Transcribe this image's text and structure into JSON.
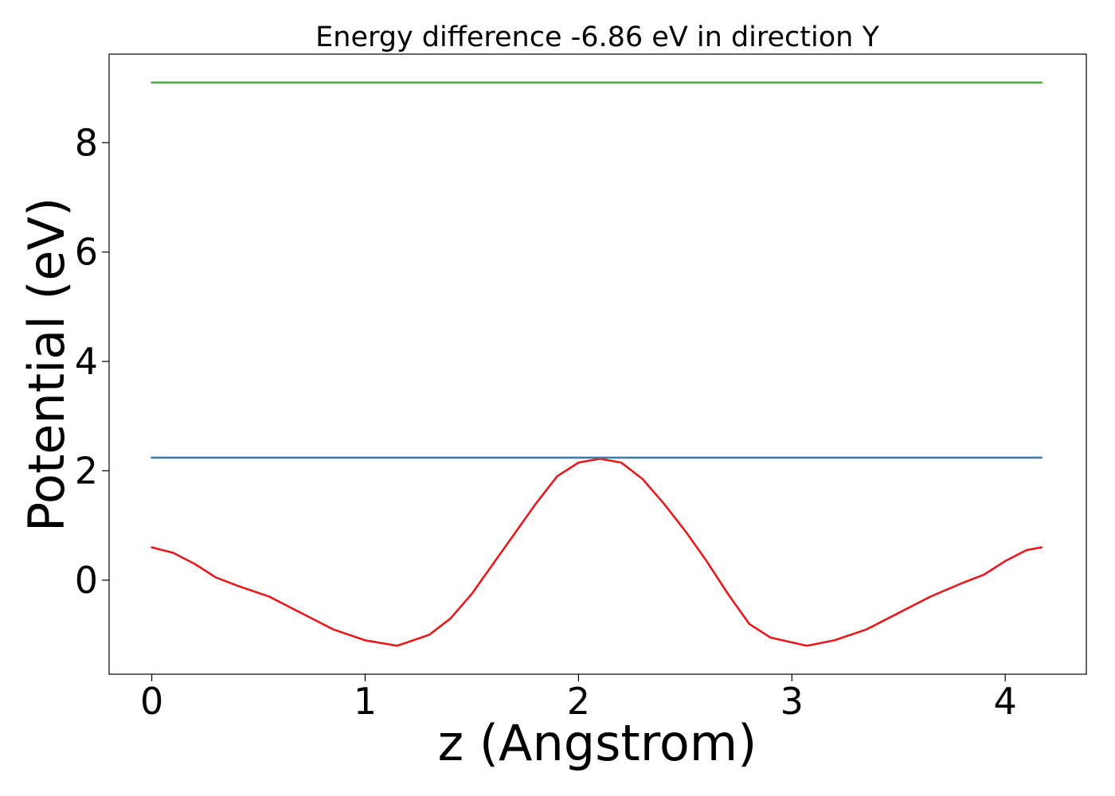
{
  "chart_data": {
    "type": "line",
    "title": "Energy difference -6.86 eV in direction Y",
    "xlabel": "z (Angstrom)",
    "ylabel": "Potential (eV)",
    "xlim": [
      -0.2,
      4.38
    ],
    "ylim": [
      -1.72,
      9.62
    ],
    "xticks": [
      0,
      1,
      2,
      3,
      4
    ],
    "yticks": [
      0,
      2,
      4,
      6,
      8
    ],
    "grid": false,
    "legend": "none",
    "colors": {
      "potential": "#e41a1c",
      "blue_level": "#377eb8",
      "green_level": "#4daf4a"
    },
    "series": [
      {
        "x": [
          0.0,
          0.1,
          0.2,
          0.3,
          0.4,
          0.55,
          0.7,
          0.85,
          1.0,
          1.15,
          1.3,
          1.4,
          1.5,
          1.6,
          1.7,
          1.8,
          1.9,
          2.0,
          2.1,
          2.2,
          2.3,
          2.4,
          2.5,
          2.6,
          2.7,
          2.8,
          2.9,
          3.07,
          3.2,
          3.35,
          3.5,
          3.65,
          3.8,
          3.9,
          4.0,
          4.1,
          4.17
        ],
        "y": [
          0.6,
          0.5,
          0.3,
          0.05,
          -0.1,
          -0.3,
          -0.6,
          -0.9,
          -1.1,
          -1.2,
          -1.0,
          -0.7,
          -0.25,
          0.3,
          0.85,
          1.4,
          1.9,
          2.15,
          2.22,
          2.15,
          1.85,
          1.4,
          0.9,
          0.35,
          -0.25,
          -0.8,
          -1.05,
          -1.2,
          -1.1,
          -0.9,
          -0.6,
          -0.3,
          -0.05,
          0.1,
          0.35,
          0.55,
          0.6
        ]
      },
      {
        "x": [
          0.0,
          4.17
        ],
        "y": [
          2.24,
          2.24
        ]
      },
      {
        "x": [
          0.0,
          4.17
        ],
        "y": [
          9.1,
          9.1
        ]
      }
    ]
  }
}
